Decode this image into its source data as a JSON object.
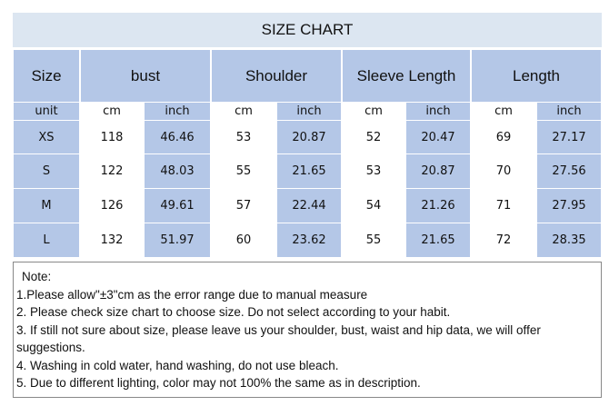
{
  "table": {
    "title": "SIZE CHART",
    "header": [
      "Size",
      "bust",
      "Shoulder",
      "Sleeve Length",
      "Length"
    ],
    "units": [
      "unit",
      "cm",
      "inch",
      "cm",
      "inch",
      "cm",
      "inch",
      "cm",
      "inch"
    ],
    "rows": [
      [
        "XS",
        "118",
        "46.46",
        "53",
        "20.87",
        "52",
        "20.47",
        "69",
        "27.17"
      ],
      [
        "S",
        "122",
        "48.03",
        "55",
        "21.65",
        "53",
        "20.87",
        "70",
        "27.56"
      ],
      [
        "M",
        "126",
        "49.61",
        "57",
        "22.44",
        "54",
        "21.26",
        "71",
        "27.95"
      ],
      [
        "L",
        "132",
        "51.97",
        "60",
        "23.62",
        "55",
        "21.65",
        "72",
        "28.35"
      ]
    ]
  },
  "notes": [
    "Note:",
    "1.Please allow\"±3\"cm as the error range due to manual measure",
    "2. Please check size chart to choose size. Do not select according to your habit.",
    "3. If still not sure about size, please leave us your shoulder, bust, waist and hip data, we will offer suggestions.",
    "4. Washing in cold water, hand washing, do not use bleach.",
    "5. Due to different lighting, color may not 100% the same as in description."
  ]
}
